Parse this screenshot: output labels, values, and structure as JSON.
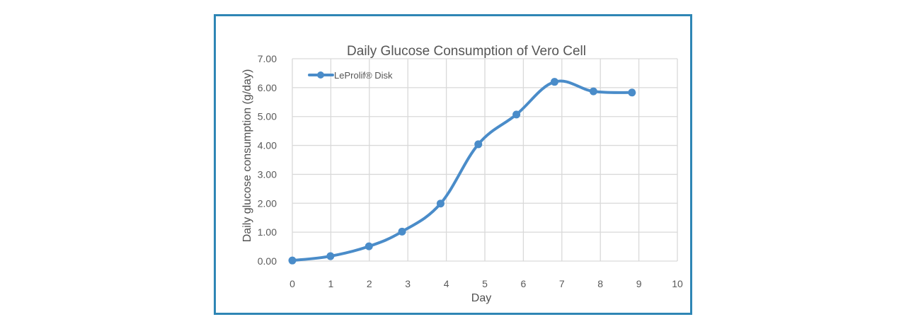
{
  "chart_data": {
    "type": "line",
    "title": "Daily Glucose Consumption of Vero Cell",
    "xlabel": "Day",
    "ylabel": "Daily glucose consumption (g/day)",
    "xlim": [
      0,
      10
    ],
    "ylim": [
      0,
      7
    ],
    "x_ticks": [
      "0",
      "1",
      "2",
      "3",
      "4",
      "5",
      "6",
      "7",
      "8",
      "9",
      "10"
    ],
    "y_ticks": [
      "0.00",
      "1.00",
      "2.00",
      "3.00",
      "4.00",
      "5.00",
      "6.00",
      "7.00"
    ],
    "grid": true,
    "smooth": true,
    "legend_position": "top-left",
    "series": [
      {
        "name": "LeProlif® Disk",
        "color": "#4a8cc9",
        "x": [
          0,
          0.99,
          1.99,
          2.85,
          3.85,
          4.83,
          5.82,
          6.81,
          7.82,
          8.82
        ],
        "values": [
          0.02,
          0.17,
          0.51,
          1.02,
          1.99,
          4.04,
          5.07,
          6.2,
          5.87,
          5.83
        ]
      }
    ]
  }
}
